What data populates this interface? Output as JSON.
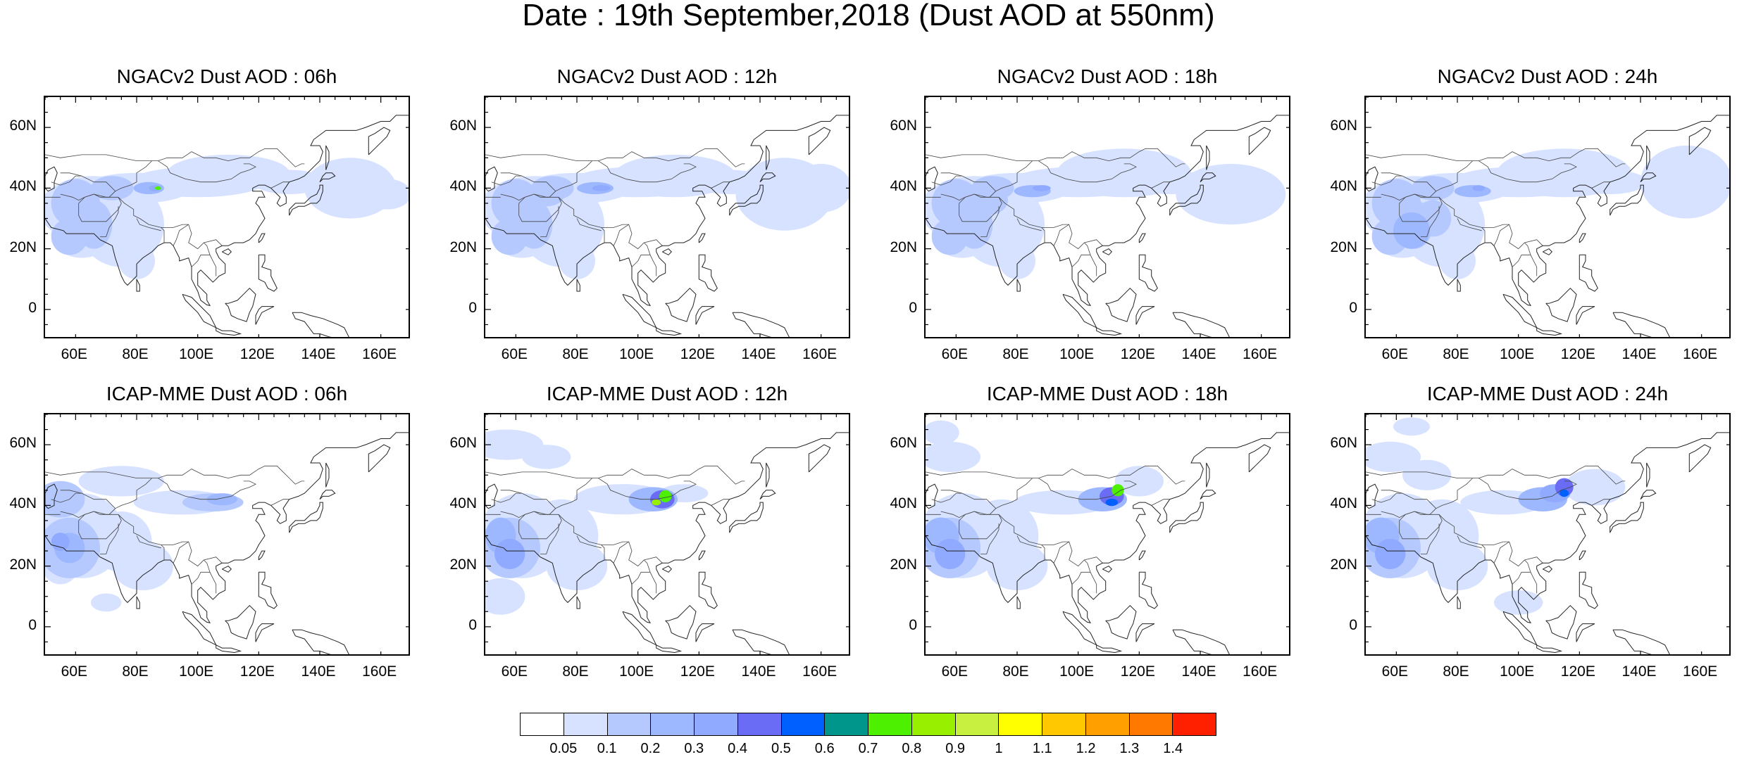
{
  "title": "Date : 19th September,2018 (Dust AOD at 550nm)",
  "panels": [
    {
      "title": "NGACv2 Dust AOD : 06h"
    },
    {
      "title": "NGACv2 Dust AOD : 12h"
    },
    {
      "title": "NGACv2 Dust AOD : 18h"
    },
    {
      "title": "NGACv2 Dust AOD : 24h"
    },
    {
      "title": "ICAP-MME Dust AOD : 06h"
    },
    {
      "title": "ICAP-MME Dust AOD : 12h"
    },
    {
      "title": "ICAP-MME Dust AOD : 18h"
    },
    {
      "title": "ICAP-MME Dust AOD : 24h"
    }
  ],
  "axes": {
    "lat_ticks": [
      "60N",
      "40N",
      "20N",
      "0"
    ],
    "lon_ticks": [
      "60E",
      "80E",
      "100E",
      "120E",
      "140E",
      "160E"
    ],
    "lon_range": [
      50,
      170
    ],
    "lat_range": [
      -10,
      70
    ]
  },
  "colorbar": {
    "labels": [
      "0.05",
      "0.1",
      "0.2",
      "0.3",
      "0.4",
      "0.5",
      "0.6",
      "0.7",
      "0.8",
      "0.9",
      "1",
      "1.1",
      "1.2",
      "1.3",
      "1.4"
    ],
    "colors": [
      "#ffffff",
      "#d6e2ff",
      "#b5c9ff",
      "#9db8ff",
      "#8faaff",
      "#6a6cf5",
      "#0060ff",
      "#00968c",
      "#4cf000",
      "#98f000",
      "#c8f040",
      "#ffff00",
      "#ffc800",
      "#ffa000",
      "#ff7800",
      "#ff2000"
    ]
  }
}
